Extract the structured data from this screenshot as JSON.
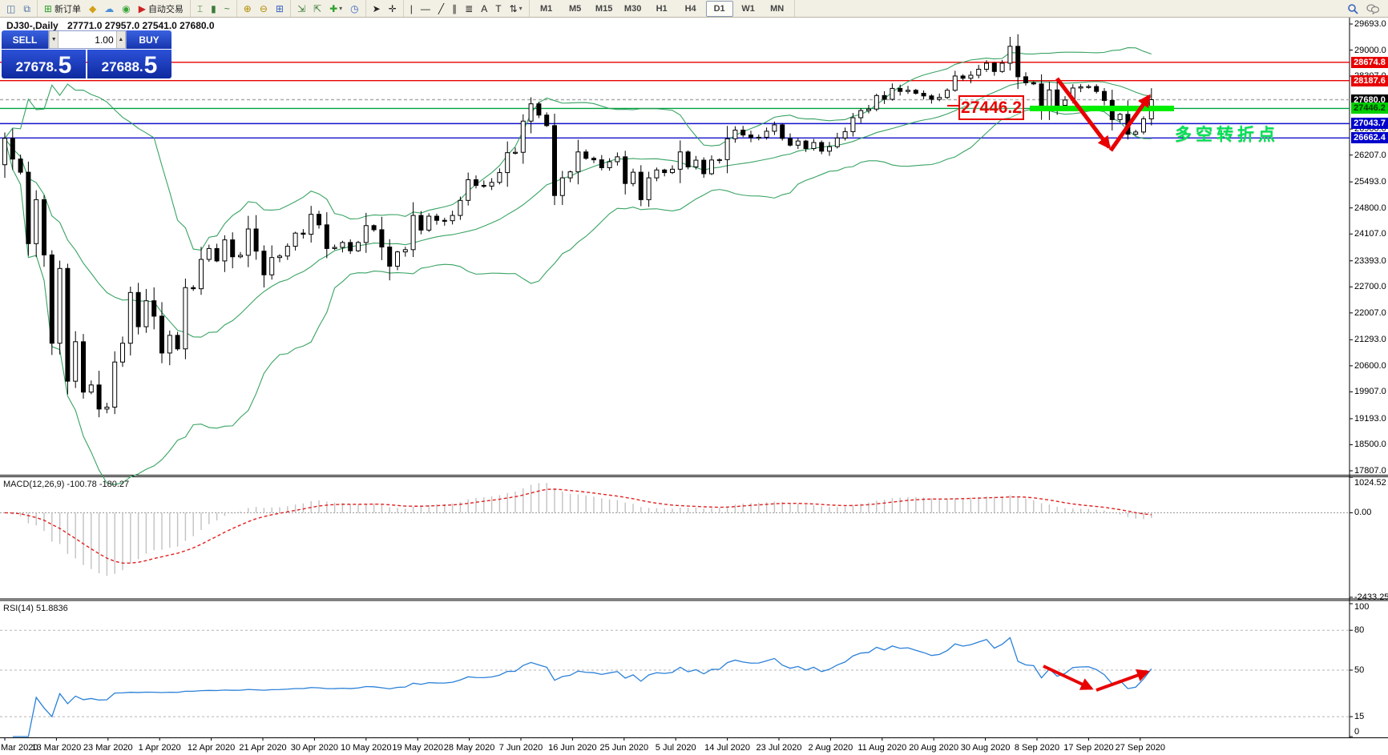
{
  "toolbar": {
    "groups": [
      {
        "items": [
          {
            "name": "chart-window-icon",
            "glyph": "◫",
            "color": "#4a6ea9"
          },
          {
            "name": "data-window-icon",
            "glyph": "⧉",
            "color": "#4a6ea9"
          }
        ]
      },
      {
        "items": [
          {
            "name": "new-order-icon",
            "glyph": "⊞",
            "color": "#2da02d",
            "label": "新订单"
          },
          {
            "name": "market-icon",
            "glyph": "◆",
            "color": "#d4a017"
          },
          {
            "name": "community-cloud-icon",
            "glyph": "☁",
            "color": "#4a90d9"
          },
          {
            "name": "signals-icon",
            "glyph": "◉",
            "color": "#3aa33a"
          },
          {
            "name": "autotrade-icon",
            "glyph": "▶",
            "color": "#cc2222",
            "label": "自动交易"
          }
        ]
      },
      {
        "items": [
          {
            "name": "ohlc-bars-icon",
            "glyph": "⌶",
            "color": "#3a7a3a"
          },
          {
            "name": "candlestick-icon",
            "glyph": "▮",
            "color": "#3a7a3a"
          },
          {
            "name": "line-chart-icon",
            "glyph": "~",
            "color": "#3a7a3a"
          }
        ]
      },
      {
        "items": [
          {
            "name": "zoom-in-icon",
            "glyph": "⊕",
            "color": "#b08a00"
          },
          {
            "name": "zoom-out-icon",
            "glyph": "⊖",
            "color": "#b08a00"
          },
          {
            "name": "tile-windows-icon",
            "glyph": "⊞",
            "color": "#3a62c0"
          }
        ]
      },
      {
        "items": [
          {
            "name": "indicator-window-icon",
            "glyph": "⇲",
            "color": "#3a7a3a"
          },
          {
            "name": "indicator-list-icon",
            "glyph": "⇱",
            "color": "#3a7a3a"
          },
          {
            "name": "add-indicator-icon",
            "glyph": "✚",
            "color": "#2da02d",
            "caret": true
          },
          {
            "name": "periods-clock-icon",
            "glyph": "◷",
            "color": "#3a62c0"
          }
        ]
      },
      {
        "items": [
          {
            "name": "cursor-icon",
            "glyph": "➤",
            "color": "#222"
          },
          {
            "name": "crosshair-icon",
            "glyph": "✛",
            "color": "#222"
          }
        ]
      },
      {
        "items": [
          {
            "name": "vertical-line-icon",
            "glyph": "|",
            "color": "#222"
          },
          {
            "name": "horizontal-line-icon",
            "glyph": "—",
            "color": "#222"
          },
          {
            "name": "trendline-icon",
            "glyph": "╱",
            "color": "#222"
          },
          {
            "name": "equidistant-channel-icon",
            "glyph": "∥",
            "color": "#222"
          },
          {
            "name": "fibonacci-icon",
            "glyph": "≣",
            "color": "#222"
          },
          {
            "name": "text-icon",
            "glyph": "A",
            "color": "#222"
          },
          {
            "name": "text-label-icon",
            "glyph": "T",
            "color": "#222"
          },
          {
            "name": "arrows-icon",
            "glyph": "⇅",
            "color": "#222",
            "caret": true
          }
        ]
      }
    ],
    "timeframes": [
      "M1",
      "M5",
      "M15",
      "M30",
      "H1",
      "H4",
      "D1",
      "W1",
      "MN"
    ],
    "active_timeframe": "D1"
  },
  "chart": {
    "title": "DJ30-,Daily",
    "ohlc_text": "27771.0 27957.0 27541.0 27680.0"
  },
  "one_click": {
    "sell_label": "SELL",
    "buy_label": "BUY",
    "volume": "1.00",
    "spin_down": "▼",
    "spin_up": "▲",
    "sell_price_small": "27678.",
    "sell_price_big": "5",
    "buy_price_small": "27688.",
    "buy_price_big": "5"
  },
  "price_axis": {
    "ticks": [
      29693.0,
      29000.0,
      28307.0,
      26900.0,
      26207.0,
      25493.0,
      24800.0,
      24107.0,
      23393.0,
      22700.0,
      22007.0,
      21293.0,
      20600.0,
      19907.0,
      19193.0,
      18500.0,
      17807.0
    ],
    "badges": [
      {
        "label": "28674.8",
        "price": 28674.8,
        "bg": "#e80000",
        "fg": "#ffffff"
      },
      {
        "label": "28187.6",
        "price": 28187.6,
        "bg": "#e80000",
        "fg": "#ffffff"
      },
      {
        "label": "27680.0",
        "price": 27680.0,
        "bg": "#000000",
        "fg": "#ffffff"
      },
      {
        "label": "27446.2",
        "price": 27446.2,
        "bg": "#00d000",
        "fg": "#003300"
      },
      {
        "label": "27043.7",
        "price": 27043.7,
        "bg": "#0000cc",
        "fg": "#ffffff"
      },
      {
        "label": "26662.4",
        "price": 26662.4,
        "bg": "#0000cc",
        "fg": "#ffffff"
      }
    ]
  },
  "annotations": {
    "support_price": "27446.2",
    "cn_note": "多空转折点",
    "highlight_color": "#00ee00",
    "arrow_color": "#e80000"
  },
  "indicators": {
    "macd": {
      "label": "MACD(12,26,9) -100.78 -180.27",
      "axis": [
        {
          "value": 1024.52,
          "label": "1024.52"
        },
        {
          "value": 0,
          "label": "0.00"
        },
        {
          "value": -2433.25,
          "label": "-2433.25"
        }
      ]
    },
    "rsi": {
      "label": "RSI(14) 51.8836",
      "axis": [
        {
          "value": 100,
          "label": "100"
        },
        {
          "value": 80,
          "label": "80"
        },
        {
          "value": 50,
          "label": "50"
        },
        {
          "value": 15,
          "label": "15"
        },
        {
          "value": 0,
          "label": "0"
        }
      ],
      "dashed_levels": [
        80,
        50,
        15
      ]
    }
  },
  "date_axis": {
    "labels": [
      "Mar 2020",
      "13 Mar 2020",
      "23 Mar 2020",
      "1 Apr 2020",
      "12 Apr 2020",
      "21 Apr 2020",
      "30 Apr 2020",
      "10 May 2020",
      "19 May 2020",
      "28 May 2020",
      "7 Jun 2020",
      "16 Jun 2020",
      "25 Jun 2020",
      "5 Jul 2020",
      "14 Jul 2020",
      "23 Jul 2020",
      "2 Aug 2020",
      "11 Aug 2020",
      "20 Aug 2020",
      "30 Aug 2020",
      "8 Sep 2020",
      "17 Sep 2020",
      "27 Sep 2020"
    ]
  },
  "chart_data": {
    "type": "candlestick",
    "symbol": "DJ30-",
    "period": "Daily",
    "last_ohlc": {
      "open": 27771.0,
      "high": 27957.0,
      "low": 27541.0,
      "close": 27680.0
    },
    "y_range": [
      17807.0,
      29693.0
    ],
    "first_open": 25950,
    "closes": [
      26650,
      26100,
      25750,
      23850,
      25020,
      23550,
      21200,
      23190,
      20190,
      21240,
      19900,
      20090,
      19450,
      19500,
      20700,
      21200,
      22550,
      21640,
      22330,
      21920,
      20940,
      21410,
      21050,
      22680,
      22650,
      23430,
      23720,
      23390,
      23950,
      23500,
      23540,
      24240,
      23650,
      23020,
      23480,
      23520,
      23780,
      24130,
      24100,
      24630,
      24350,
      23720,
      23750,
      23880,
      23660,
      23880,
      24330,
      24220,
      23760,
      23250,
      23630,
      23690,
      24600,
      24210,
      24580,
      24470,
      24460,
      24600,
      25000,
      25550,
      25400,
      25380,
      25480,
      25740,
      26270,
      26280,
      27110,
      27570,
      27270,
      26990,
      25130,
      25600,
      25760,
      26290,
      26120,
      26080,
      25870,
      26030,
      26160,
      25450,
      25750,
      25020,
      25600,
      25810,
      25740,
      25830,
      26290,
      25890,
      26070,
      25710,
      26075,
      26085,
      26640,
      26870,
      26740,
      26670,
      26680,
      26840,
      27010,
      26650,
      26470,
      26580,
      26380,
      26540,
      26310,
      26430,
      26660,
      26830,
      27200,
      27390,
      27430,
      27790,
      27690,
      27980,
      27900,
      27930,
      27850,
      27780,
      27690,
      27740,
      27930,
      28310,
      28250,
      28330,
      28490,
      28650,
      28430,
      28650,
      29100,
      28290,
      28130,
      28100,
      27500,
      27940,
      27530,
      27670,
      27990,
      28020,
      28030,
      27900,
      27660,
      27150,
      27290,
      26760,
      26820,
      27170,
      27680
    ],
    "bollinger": {
      "period": 20,
      "deviation": 2,
      "color": "#2e9e5b"
    },
    "level_lines": [
      {
        "price": 28674.8,
        "color": "#e80000",
        "dash": ""
      },
      {
        "price": 28187.6,
        "color": "#e80000",
        "dash": ""
      },
      {
        "price": 27680.0,
        "color": "#aaaaaa",
        "dash": "4 3"
      },
      {
        "price": 27446.2,
        "color": "#00a040",
        "dash": ""
      },
      {
        "price": 27043.7,
        "color": "#1111cc",
        "dash": ""
      },
      {
        "price": 26662.4,
        "color": "#1111cc",
        "dash": ""
      }
    ],
    "macd": {
      "fast": 12,
      "slow": 26,
      "signal": 9,
      "current": -100.78,
      "current_signal": -180.27,
      "range": [
        -2433.25,
        1024.52
      ]
    },
    "rsi": {
      "period": 14,
      "current": 51.8836,
      "range": [
        0,
        100
      ]
    }
  }
}
